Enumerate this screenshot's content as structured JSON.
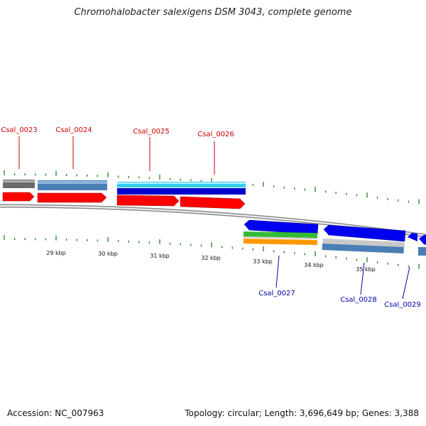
{
  "title": "Chromohalobacter salexigens DSM 3043, complete genome",
  "footer": {
    "accession": "Accession: NC_007963",
    "summary": "Topology: circular; Length: 3,696,649 bp; Genes: 3,388"
  },
  "colors": {
    "forward_label": "#cc0000",
    "reverse_label": "#0000aa",
    "tick": "#2e8b2e",
    "backbone": "#9a9a9a",
    "cds": "#ff0000",
    "gene_blue": "#4a7fb5",
    "gene_gray": "#666666",
    "rna_cyan": "#33ccee",
    "rna_navy": "#0000cc",
    "rev_blue": "#0000ff",
    "rev_green": "#33bb33",
    "rev_orange": "#ff9900",
    "rev_silver": "#c8c8c8"
  },
  "upper_labels": [
    "Csal_0023",
    "Csal_0024",
    "Csal_0025",
    "Csal_0026"
  ],
  "lower_labels": [
    "Csal_0027",
    "Csal_0028",
    "Csal_0029"
  ],
  "scale_labels": [
    "29 kbp",
    "30 kbp",
    "31 kbp",
    "32 kbp",
    "33 kbp",
    "34 kbp",
    "35 kbp"
  ]
}
